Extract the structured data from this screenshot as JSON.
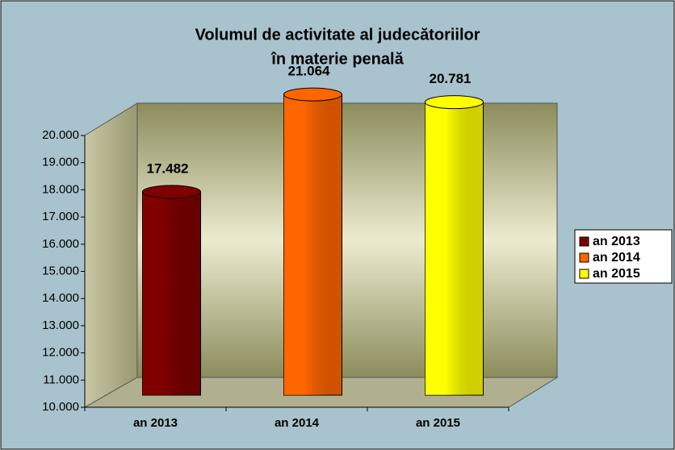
{
  "chart_data": {
    "type": "bar",
    "title": [
      "Volumul de activitate al judecătoriilor",
      "în materie penală"
    ],
    "categories": [
      "an 2013",
      "an 2014",
      "an 2015"
    ],
    "values": [
      17482,
      21064,
      20781
    ],
    "value_labels": [
      "17.482",
      "21.064",
      "20.781"
    ],
    "colors": [
      "#800000",
      "#ff6600",
      "#ffff00"
    ],
    "ylim": [
      10000,
      20000
    ],
    "yticks": [
      {
        "value": 10000,
        "label": "10.000"
      },
      {
        "value": 11000,
        "label": "11.000"
      },
      {
        "value": 12000,
        "label": "12.000"
      },
      {
        "value": 13000,
        "label": "13.000"
      },
      {
        "value": 14000,
        "label": "14.000"
      },
      {
        "value": 15000,
        "label": "15.000"
      },
      {
        "value": 16000,
        "label": "16.000"
      },
      {
        "value": 17000,
        "label": "17.000"
      },
      {
        "value": 18000,
        "label": "18.000"
      },
      {
        "value": 19000,
        "label": "19.000"
      },
      {
        "value": 20000,
        "label": "20.000"
      }
    ],
    "legend": "right"
  }
}
